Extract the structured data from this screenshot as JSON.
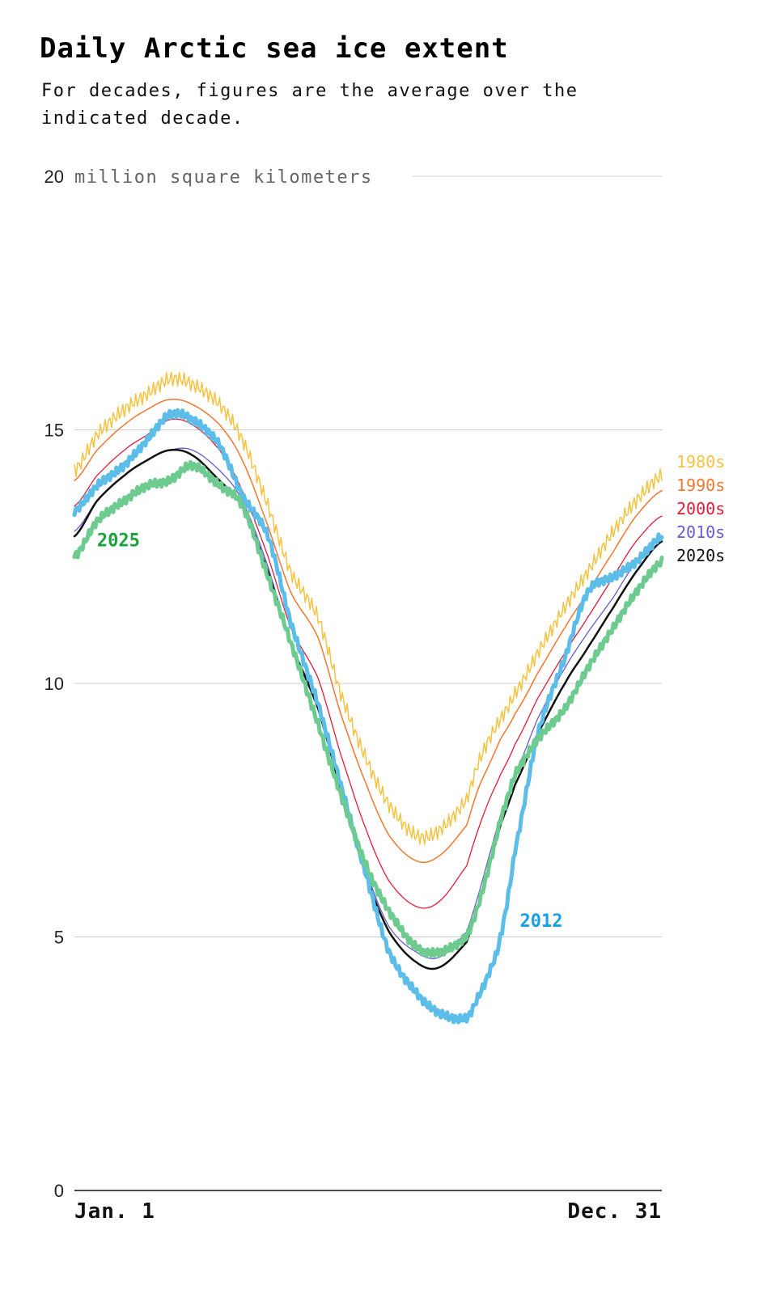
{
  "title": "Daily Arctic sea ice extent",
  "subtitle": "For decades, figures are the average over the indicated decade.",
  "chart_data": {
    "type": "line",
    "title": "Daily Arctic sea ice extent",
    "subtitle": "For decades, figures are the average over the indicated decade.",
    "ylabel": "million square kilometers",
    "ylim": [
      0,
      20
    ],
    "yticks": [
      0,
      5,
      10,
      15,
      20
    ],
    "xlim": [
      1,
      365
    ],
    "x_tick_labels": [
      "Jan. 1",
      "Dec. 31"
    ],
    "grid": true,
    "x": [
      1,
      15,
      32,
      46,
      60,
      74,
      91,
      105,
      121,
      135,
      152,
      166,
      182,
      196,
      213,
      227,
      244,
      251,
      258,
      265,
      274,
      288,
      305,
      319,
      335,
      349,
      365
    ],
    "series": [
      {
        "name": "1980s",
        "color": "#f5c342",
        "width": 1.5,
        "jagged": 0.15,
        "values": [
          14.2,
          14.9,
          15.4,
          15.7,
          16.0,
          15.9,
          15.5,
          14.8,
          13.5,
          12.2,
          11.3,
          9.8,
          8.5,
          7.6,
          7.0,
          7.1,
          7.7,
          8.4,
          8.9,
          9.3,
          9.8,
          10.6,
          11.5,
          12.2,
          13.0,
          13.6,
          14.1
        ]
      },
      {
        "name": "1990s",
        "color": "#f4772e",
        "width": 1.5,
        "jagged": 0,
        "values": [
          14.0,
          14.6,
          15.1,
          15.4,
          15.6,
          15.5,
          15.1,
          14.4,
          13.1,
          11.8,
          10.9,
          9.4,
          8.0,
          7.0,
          6.5,
          6.6,
          7.2,
          7.9,
          8.4,
          8.9,
          9.4,
          10.2,
          11.1,
          11.8,
          12.6,
          13.3,
          13.8
        ]
      },
      {
        "name": "2000s",
        "color": "#e31b38",
        "width": 1.3,
        "jagged": 0,
        "values": [
          13.5,
          14.1,
          14.6,
          14.9,
          15.2,
          15.1,
          14.6,
          13.8,
          12.5,
          11.1,
          10.1,
          8.6,
          7.1,
          6.1,
          5.6,
          5.7,
          6.4,
          7.1,
          7.7,
          8.2,
          8.8,
          9.7,
          10.6,
          11.3,
          12.1,
          12.8,
          13.3
        ]
      },
      {
        "name": "2010s",
        "color": "#6a5acd",
        "width": 1.3,
        "jagged": 0,
        "values": [
          13.0,
          13.6,
          14.1,
          14.4,
          14.6,
          14.6,
          14.2,
          13.6,
          12.3,
          10.8,
          9.6,
          8.0,
          6.3,
          5.2,
          4.7,
          4.6,
          5.1,
          5.8,
          6.6,
          7.4,
          8.2,
          9.3,
          10.3,
          11.0,
          11.7,
          12.4,
          12.9
        ]
      },
      {
        "name": "2020s",
        "color": "#111111",
        "width": 2.5,
        "jagged": 0,
        "values": [
          12.9,
          13.6,
          14.1,
          14.4,
          14.6,
          14.5,
          14.0,
          13.5,
          12.2,
          10.8,
          9.5,
          7.9,
          6.2,
          5.1,
          4.5,
          4.4,
          4.9,
          5.6,
          6.4,
          7.2,
          8.0,
          9.0,
          10.0,
          10.7,
          11.5,
          12.2,
          12.8
        ]
      },
      {
        "name": "2012",
        "color": "#5bbde8",
        "width": 5,
        "jagged": 0.08,
        "values": [
          13.4,
          13.9,
          14.3,
          14.8,
          15.3,
          15.2,
          14.7,
          13.7,
          12.9,
          11.2,
          9.6,
          8.0,
          6.2,
          4.7,
          3.9,
          3.5,
          3.4,
          3.8,
          4.3,
          5.0,
          6.7,
          9.0,
          10.5,
          11.8,
          12.1,
          12.4,
          12.9
        ]
      },
      {
        "name": "2025",
        "color": "#6dcb8f",
        "width": 5,
        "jagged": 0.08,
        "values": [
          12.5,
          13.2,
          13.6,
          13.9,
          14.0,
          14.3,
          13.9,
          13.5,
          12.1,
          10.8,
          9.2,
          7.8,
          6.4,
          5.5,
          4.8,
          4.7,
          5.0,
          5.6,
          6.4,
          7.3,
          8.2,
          8.9,
          9.5,
          10.3,
          11.1,
          11.8,
          12.4
        ]
      }
    ],
    "legend": [
      {
        "label": "1980s",
        "color": "#f5c342"
      },
      {
        "label": "1990s",
        "color": "#f4772e"
      },
      {
        "label": "2000s",
        "color": "#e31b38"
      },
      {
        "label": "2010s",
        "color": "#6a5acd"
      },
      {
        "label": "2020s",
        "color": "#111111"
      }
    ],
    "legend_position": "right",
    "annotations": [
      {
        "text": "2025",
        "color": "#1aa33c",
        "x": 15,
        "y": 12.7
      },
      {
        "text": "2012",
        "color": "#1aa0e0",
        "x": 277,
        "y": 5.2
      }
    ]
  }
}
